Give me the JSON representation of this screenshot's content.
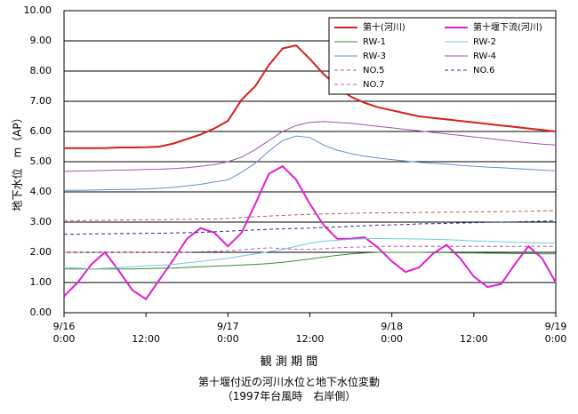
{
  "chart_data": {
    "type": "line",
    "title": "第十堰付近の河川水位と地下水位変動",
    "subtitle": "（1997年台風時　右岸側）",
    "x_label": "観 測 期 間",
    "y_label": "地下水位　m（AP）",
    "x": [
      0,
      2,
      4,
      6,
      8,
      10,
      12,
      14,
      16,
      18,
      20,
      22,
      24,
      26,
      28,
      30,
      32,
      34,
      36,
      38,
      40,
      42,
      44,
      46,
      48,
      50,
      52,
      54,
      56,
      58,
      60,
      62,
      64,
      66,
      68,
      70,
      72
    ],
    "xlim": [
      0,
      72
    ],
    "xticks": [
      {
        "value": 0,
        "label": "9/16\n0:00"
      },
      {
        "value": 12,
        "label": "12:00"
      },
      {
        "value": 24,
        "label": "9/17\n0:00"
      },
      {
        "value": 36,
        "label": "12:00"
      },
      {
        "value": 48,
        "label": "9/18\n0:00"
      },
      {
        "value": 60,
        "label": "12:00"
      },
      {
        "value": 72,
        "label": "9/19\n0:00"
      }
    ],
    "ylim": [
      0,
      10
    ],
    "yticks": [
      {
        "value": 0,
        "label": "0.00"
      },
      {
        "value": 1,
        "label": "1.00"
      },
      {
        "value": 2,
        "label": "2.00"
      },
      {
        "value": 3,
        "label": "3.00"
      },
      {
        "value": 4,
        "label": "4.00"
      },
      {
        "value": 5,
        "label": "5.00"
      },
      {
        "value": 6,
        "label": "6.00"
      },
      {
        "value": 7,
        "label": "7.00"
      },
      {
        "value": 8,
        "label": "8.00"
      },
      {
        "value": 9,
        "label": "9.00"
      },
      {
        "value": 10,
        "label": "10.00"
      }
    ],
    "grid": true,
    "legend": "upper right",
    "series": [
      {
        "name": "第十(河川)",
        "color": "#d42020",
        "line_width": 2,
        "dashed": false,
        "values": [
          5.45,
          5.45,
          5.45,
          5.45,
          5.47,
          5.47,
          5.48,
          5.5,
          5.6,
          5.75,
          5.9,
          6.1,
          6.35,
          7.05,
          7.5,
          8.2,
          8.75,
          8.85,
          8.4,
          7.9,
          7.5,
          7.15,
          6.95,
          6.8,
          6.7,
          6.6,
          6.5,
          6.45,
          6.4,
          6.35,
          6.3,
          6.25,
          6.2,
          6.15,
          6.1,
          6.05,
          6.0
        ]
      },
      {
        "name": "第十堰下流(河川)",
        "color": "#e020d0",
        "line_width": 2,
        "dashed": false,
        "values": [
          0.55,
          1.0,
          1.6,
          2.0,
          1.4,
          0.75,
          0.45,
          1.1,
          1.75,
          2.45,
          2.8,
          2.65,
          2.2,
          2.65,
          3.6,
          4.6,
          4.85,
          4.4,
          3.6,
          2.9,
          2.45,
          2.45,
          2.5,
          2.15,
          1.7,
          1.35,
          1.5,
          1.95,
          2.25,
          1.8,
          1.2,
          0.85,
          0.95,
          1.6,
          2.2,
          1.8,
          1.0
        ]
      },
      {
        "name": "RW-1",
        "color": "#3a8a3a",
        "line_width": 1,
        "dashed": false,
        "values": [
          1.45,
          1.45,
          1.45,
          1.45,
          1.45,
          1.45,
          1.46,
          1.47,
          1.48,
          1.5,
          1.52,
          1.54,
          1.56,
          1.58,
          1.6,
          1.63,
          1.67,
          1.72,
          1.78,
          1.84,
          1.9,
          1.95,
          1.98,
          2.0,
          2.0,
          2.0,
          2.0,
          1.99,
          1.99,
          1.98,
          1.98,
          1.97,
          1.97,
          1.96,
          1.96,
          1.95,
          1.95
        ]
      },
      {
        "name": "RW-2",
        "color": "#70c8d8",
        "line_width": 1,
        "dashed": false,
        "values": [
          1.5,
          1.48,
          1.45,
          1.47,
          1.5,
          1.52,
          1.55,
          1.57,
          1.6,
          1.65,
          1.7,
          1.75,
          1.8,
          1.88,
          1.95,
          2.02,
          2.1,
          2.2,
          2.3,
          2.37,
          2.4,
          2.43,
          2.45,
          2.46,
          2.45,
          2.45,
          2.44,
          2.43,
          2.42,
          2.4,
          2.38,
          2.36,
          2.35,
          2.33,
          2.32,
          2.31,
          2.3
        ]
      },
      {
        "name": "RW-3",
        "color": "#6a8ccc",
        "line_width": 1,
        "dashed": false,
        "values": [
          4.05,
          4.05,
          4.06,
          4.07,
          4.08,
          4.08,
          4.1,
          4.12,
          4.15,
          4.2,
          4.25,
          4.33,
          4.4,
          4.65,
          4.95,
          5.35,
          5.7,
          5.85,
          5.8,
          5.55,
          5.38,
          5.27,
          5.18,
          5.12,
          5.07,
          5.02,
          4.98,
          4.95,
          4.92,
          4.88,
          4.85,
          4.82,
          4.8,
          4.77,
          4.75,
          4.72,
          4.7
        ]
      },
      {
        "name": "RW-4",
        "color": "#9a5aa8",
        "line_width": 1,
        "dashed": false,
        "values": [
          4.68,
          4.69,
          4.7,
          4.71,
          4.72,
          4.73,
          4.74,
          4.75,
          4.77,
          4.8,
          4.85,
          4.9,
          5.0,
          5.15,
          5.4,
          5.7,
          6.0,
          6.2,
          6.3,
          6.33,
          6.3,
          6.27,
          6.22,
          6.17,
          6.12,
          6.07,
          6.02,
          5.97,
          5.92,
          5.87,
          5.82,
          5.77,
          5.72,
          5.67,
          5.62,
          5.58,
          5.55
        ]
      },
      {
        "name": "NO.5",
        "color": "#b06060",
        "line_width": 1,
        "dashed": true,
        "values": [
          3.05,
          3.05,
          3.06,
          3.06,
          3.07,
          3.07,
          3.08,
          3.08,
          3.09,
          3.09,
          3.1,
          3.1,
          3.12,
          3.15,
          3.18,
          3.2,
          3.22,
          3.24,
          3.26,
          3.27,
          3.28,
          3.29,
          3.3,
          3.3,
          3.31,
          3.31,
          3.32,
          3.32,
          3.33,
          3.33,
          3.34,
          3.34,
          3.35,
          3.35,
          3.36,
          3.37,
          3.38
        ]
      },
      {
        "name": "NO.6",
        "color": "#303080",
        "line_width": 1,
        "dashed": true,
        "values": [
          2.6,
          2.6,
          2.61,
          2.61,
          2.62,
          2.62,
          2.63,
          2.63,
          2.64,
          2.65,
          2.66,
          2.68,
          2.7,
          2.72,
          2.74,
          2.76,
          2.78,
          2.79,
          2.8,
          2.82,
          2.84,
          2.86,
          2.88,
          2.9,
          2.91,
          2.92,
          2.94,
          2.95,
          2.96,
          2.97,
          2.98,
          2.99,
          3.0,
          3.01,
          3.02,
          3.03,
          3.05
        ]
      },
      {
        "name": "NO.7",
        "color": "#b060b0",
        "line_width": 1,
        "dashed": true,
        "values": [
          2.0,
          2.0,
          2.0,
          2.0,
          2.0,
          2.0,
          2.0,
          2.0,
          2.0,
          2.0,
          2.02,
          2.03,
          2.05,
          2.08,
          2.12,
          2.15,
          2.12,
          2.1,
          2.1,
          2.12,
          2.15,
          2.17,
          2.18,
          2.2,
          2.2,
          2.2,
          2.2,
          2.2,
          2.2,
          2.2,
          2.2,
          2.2,
          2.2,
          2.2,
          2.2,
          2.2,
          2.2
        ]
      }
    ]
  }
}
